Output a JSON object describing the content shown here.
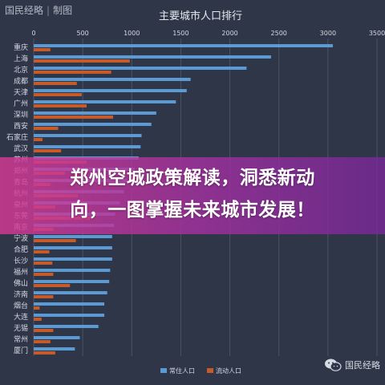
{
  "brand": {
    "name": "国民经略",
    "section": "制图",
    "separator": "|"
  },
  "headline": {
    "line1": "郑州空城政策解读，洞悉新动",
    "line2": "向，一图掌握未来城市发展！"
  },
  "watermark": {
    "text": "国民经略"
  },
  "colors": {
    "background": "#2f3647",
    "resident": "#5b9bd5",
    "floating": "#c55a2a",
    "grid": "#4a5264",
    "text": "#d3d8e2"
  },
  "chart_data": {
    "type": "bar",
    "orientation": "horizontal",
    "title": "主要城市人口排行",
    "xlim": [
      0,
      3500
    ],
    "xticks": [
      0,
      500,
      1000,
      1500,
      2000,
      2500,
      3000,
      3500
    ],
    "grid": true,
    "legend_position": "bottom",
    "categories": [
      "重庆",
      "上海",
      "北京",
      "成都",
      "天津",
      "广州",
      "深圳",
      "西安",
      "石家庄",
      "武汉",
      "苏州",
      "郑州",
      "青岛",
      "杭州",
      "泉州",
      "东莞",
      "南京",
      "宁波",
      "合肥",
      "长沙",
      "福州",
      "佛山",
      "济南",
      "烟台",
      "大连",
      "无锡",
      "常州",
      "厦门"
    ],
    "series": [
      {
        "name": "常住人口",
        "values": [
          3050,
          2420,
          2170,
          1600,
          1560,
          1450,
          1250,
          1200,
          1100,
          1090,
          1070,
          1030,
          950,
          920,
          880,
          830,
          820,
          800,
          800,
          800,
          780,
          770,
          750,
          720,
          720,
          660,
          470,
          420
        ]
      },
      {
        "name": "流动人口",
        "values": [
          170,
          980,
          790,
          440,
          490,
          540,
          810,
          250,
          90,
          280,
          540,
          320,
          170,
          450,
          220,
          580,
          200,
          430,
          160,
          190,
          200,
          370,
          200,
          60,
          80,
          200,
          170,
          220
        ]
      }
    ]
  }
}
